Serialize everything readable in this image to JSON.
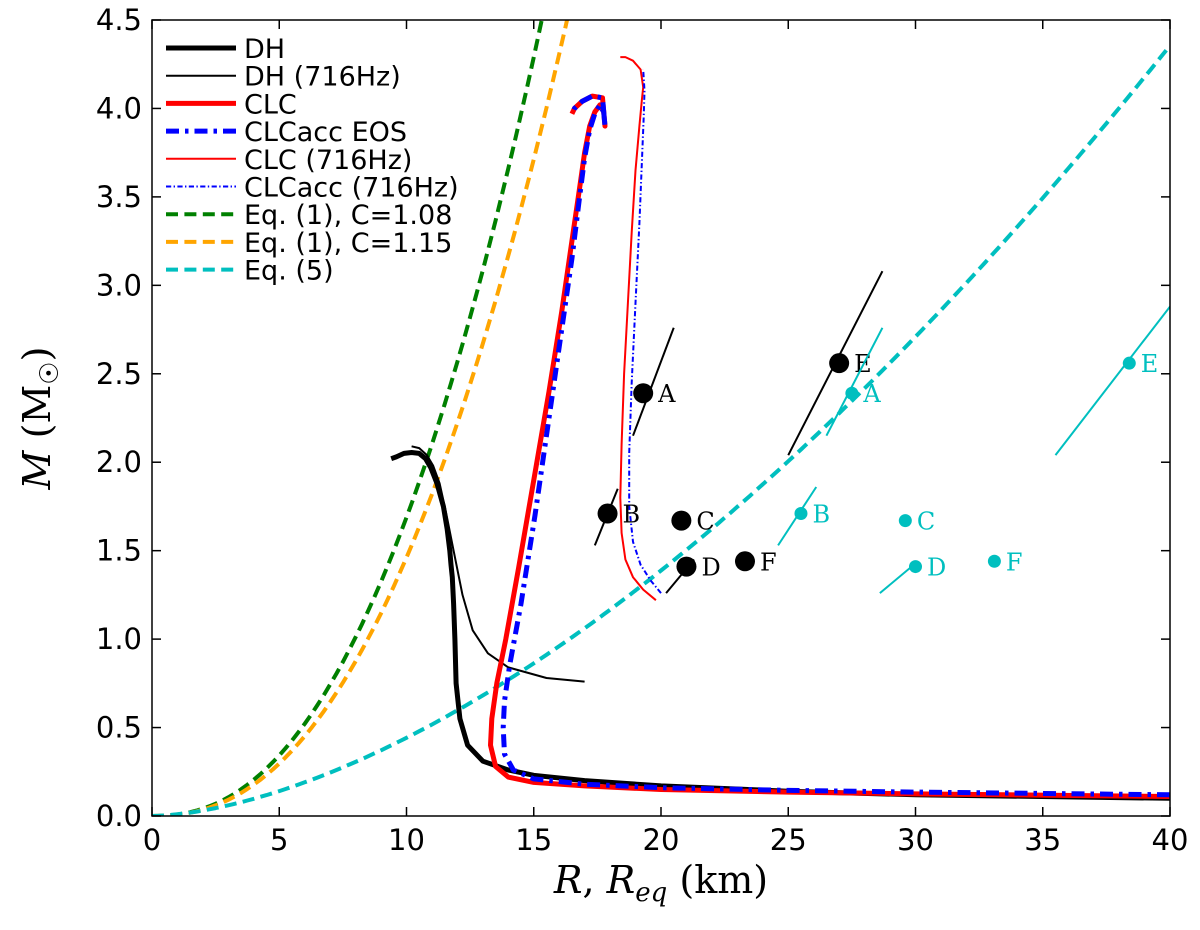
{
  "chart_data": {
    "type": "line",
    "xlabel": "R, R_eq (km)",
    "ylabel": "M (M☉)",
    "xlabel_parts": [
      "R",
      ", ",
      "R",
      "eq",
      " (km)"
    ],
    "ylabel_parts": [
      "M",
      " (M",
      "☉",
      ")"
    ],
    "xlim": [
      0,
      40
    ],
    "ylim": [
      0,
      4.5
    ],
    "xticks": [
      0,
      5,
      10,
      15,
      20,
      25,
      30,
      35,
      40
    ],
    "yticks": [
      0.0,
      0.5,
      1.0,
      1.5,
      2.0,
      2.5,
      3.0,
      3.5,
      4.0,
      4.5
    ],
    "xtick_labels": [
      "0",
      "5",
      "10",
      "15",
      "20",
      "25",
      "30",
      "35",
      "40"
    ],
    "ytick_labels": [
      "0.0",
      "0.5",
      "1.0",
      "1.5",
      "2.0",
      "2.5",
      "3.0",
      "3.5",
      "4.0",
      "4.5"
    ],
    "legend_position": "top-left",
    "series": [
      {
        "name": "DH",
        "color": "#000000",
        "width": 5,
        "dash": "solid",
        "x": [
          40,
          30,
          25,
          20,
          17,
          15,
          14,
          13,
          12.4,
          12.1,
          11.95,
          11.9,
          11.85,
          11.8,
          11.75,
          11.7,
          11.6,
          11.45,
          11.2,
          10.95,
          10.75,
          10.5,
          10.2,
          9.9,
          9.6,
          9.4
        ],
        "y": [
          0.1,
          0.12,
          0.14,
          0.17,
          0.2,
          0.23,
          0.26,
          0.31,
          0.4,
          0.55,
          0.75,
          1.0,
          1.2,
          1.35,
          1.42,
          1.5,
          1.62,
          1.75,
          1.88,
          1.97,
          2.02,
          2.05,
          2.055,
          2.05,
          2.03,
          2.02
        ]
      },
      {
        "name": "DH (716Hz)",
        "color": "#000000",
        "width": 2,
        "dash": "solid",
        "x": [
          17.0,
          15.5,
          14.0,
          13.2,
          12.6,
          12.2,
          11.85,
          11.55,
          11.3,
          11.05,
          10.8,
          10.5,
          10.2
        ],
        "y": [
          0.76,
          0.78,
          0.84,
          0.92,
          1.05,
          1.25,
          1.5,
          1.72,
          1.88,
          1.98,
          2.04,
          2.08,
          2.09
        ]
      },
      {
        "name": "CLC",
        "color": "#ff0000",
        "width": 5,
        "dash": "solid",
        "x": [
          40,
          30,
          25,
          20,
          17,
          15,
          14,
          13.5,
          13.3,
          13.35,
          13.55,
          13.9,
          14.4,
          15.0,
          15.6,
          16.1,
          16.5,
          16.8,
          17.0,
          17.2,
          17.4,
          17.6,
          17.75,
          17.8,
          17.7,
          17.3,
          16.9,
          16.6,
          16.5
        ],
        "y": [
          0.11,
          0.125,
          0.135,
          0.15,
          0.17,
          0.19,
          0.22,
          0.28,
          0.4,
          0.55,
          0.75,
          1.0,
          1.4,
          1.9,
          2.4,
          2.85,
          3.25,
          3.55,
          3.75,
          3.9,
          3.98,
          4.02,
          3.98,
          3.9,
          4.06,
          4.07,
          4.04,
          4.0,
          3.97
        ]
      },
      {
        "name": "CLCacc EOS",
        "color": "#0000ff",
        "width": 5,
        "dash": "dashdot",
        "x": [
          40,
          30,
          25,
          20,
          17,
          15,
          14.2,
          13.85,
          13.8,
          13.85,
          14.05,
          14.5,
          15.05,
          15.6,
          16.1,
          16.5,
          16.8,
          17.0,
          17.2,
          17.4,
          17.6,
          17.75,
          17.8,
          17.7,
          17.3,
          16.9,
          16.6,
          16.5
        ],
        "y": [
          0.12,
          0.135,
          0.145,
          0.16,
          0.18,
          0.21,
          0.26,
          0.35,
          0.5,
          0.65,
          0.85,
          1.2,
          1.7,
          2.25,
          2.75,
          3.15,
          3.5,
          3.72,
          3.88,
          3.97,
          4.02,
          3.98,
          3.9,
          4.06,
          4.07,
          4.04,
          4.0,
          3.97
        ]
      },
      {
        "name": "CLC (716Hz)",
        "color": "#ff0000",
        "width": 2,
        "dash": "solid",
        "x": [
          19.8,
          19.3,
          18.9,
          18.6,
          18.45,
          18.4,
          18.45,
          18.55,
          18.7,
          18.85,
          19.0,
          19.15,
          19.25,
          19.3,
          19.2,
          18.9,
          18.6,
          18.4
        ],
        "y": [
          1.22,
          1.28,
          1.35,
          1.45,
          1.6,
          1.8,
          2.1,
          2.5,
          2.9,
          3.3,
          3.65,
          3.9,
          4.05,
          4.12,
          4.22,
          4.27,
          4.29,
          4.29
        ]
      },
      {
        "name": "CLCacc (716Hz)",
        "color": "#0000ff",
        "width": 2,
        "dash": "dashdot",
        "x": [
          20.0,
          19.6,
          19.2,
          18.9,
          18.75,
          18.75,
          18.85,
          19.0,
          19.15,
          19.25,
          19.32,
          19.35,
          19.3
        ],
        "y": [
          1.26,
          1.33,
          1.42,
          1.55,
          1.75,
          2.05,
          2.45,
          2.9,
          3.35,
          3.7,
          3.95,
          4.1,
          4.22
        ]
      },
      {
        "name": "Eq. (1), C=1.08",
        "color": "#008000",
        "width": 4,
        "dash": "dashed",
        "func": "eq1",
        "C": 1.08
      },
      {
        "name": "Eq. (1), C=1.15",
        "color": "#ffa500",
        "width": 4,
        "dash": "dashed",
        "func": "eq1",
        "C": 1.15
      },
      {
        "name": "Eq. (5)",
        "color": "#00bfbf",
        "width": 4,
        "dash": "dashed",
        "func": "eq5"
      }
    ],
    "points": [
      {
        "label": "A",
        "x": 19.3,
        "y": 2.39,
        "color": "#000000",
        "size": "large",
        "seg": [
          [
            18.9,
            2.15
          ],
          [
            20.5,
            2.76
          ]
        ]
      },
      {
        "label": "B",
        "x": 17.9,
        "y": 1.71,
        "color": "#000000",
        "size": "large",
        "seg": [
          [
            17.4,
            1.53
          ],
          [
            18.3,
            1.85
          ]
        ]
      },
      {
        "label": "C",
        "x": 20.8,
        "y": 1.67,
        "color": "#000000",
        "size": "large"
      },
      {
        "label": "D",
        "x": 21.0,
        "y": 1.41,
        "color": "#000000",
        "size": "large",
        "seg": [
          [
            20.2,
            1.26
          ],
          [
            21.3,
            1.45
          ]
        ]
      },
      {
        "label": "F",
        "x": 23.3,
        "y": 1.44,
        "color": "#000000",
        "size": "large"
      },
      {
        "label": "E",
        "x": 27.0,
        "y": 2.56,
        "color": "#000000",
        "size": "large",
        "seg": [
          [
            25.0,
            2.04
          ],
          [
            28.7,
            3.08
          ]
        ]
      },
      {
        "label": "E",
        "x": 38.4,
        "y": 2.56,
        "color": "#00bfbf",
        "size": "small",
        "seg": [
          [
            35.5,
            2.04
          ],
          [
            40.0,
            2.88
          ]
        ]
      },
      {
        "label": "A",
        "x": 27.5,
        "y": 2.39,
        "color": "#00bfbf",
        "size": "small",
        "seg": [
          [
            26.5,
            2.15
          ],
          [
            28.7,
            2.76
          ]
        ]
      },
      {
        "label": "B",
        "x": 25.5,
        "y": 1.71,
        "color": "#00bfbf",
        "size": "small",
        "seg": [
          [
            24.6,
            1.53
          ],
          [
            26.1,
            1.86
          ]
        ]
      },
      {
        "label": "C",
        "x": 29.6,
        "y": 1.67,
        "color": "#00bfbf",
        "size": "small"
      },
      {
        "label": "D",
        "x": 30.0,
        "y": 1.41,
        "color": "#00bfbf",
        "size": "small",
        "seg": [
          [
            28.6,
            1.26
          ],
          [
            30.1,
            1.44
          ]
        ]
      },
      {
        "label": "F",
        "x": 33.1,
        "y": 1.44,
        "color": "#00bfbf",
        "size": "small"
      }
    ]
  }
}
